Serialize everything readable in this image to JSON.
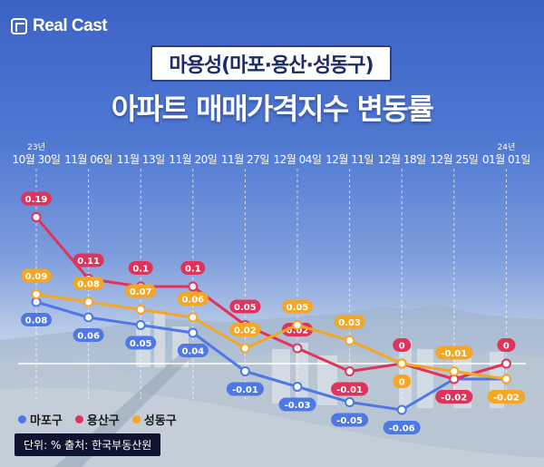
{
  "brand": {
    "name": "Real Cast"
  },
  "title": {
    "top": "마용성(마포·용산·성동구)",
    "main": "아파트 매매가격지수 변동률"
  },
  "note": "단위: % 출처: 한국부동산원",
  "colors": {
    "mapo": "#4d78e6",
    "yongsan": "#e0325a",
    "seongdong": "#f5a623"
  },
  "chart_data": {
    "type": "line",
    "x": [
      {
        "year": "23년",
        "date": "10월 30일"
      },
      {
        "year": "",
        "date": "11월 06일"
      },
      {
        "year": "",
        "date": "11월 13일"
      },
      {
        "year": "",
        "date": "11월 20일"
      },
      {
        "year": "",
        "date": "11월 27일"
      },
      {
        "year": "",
        "date": "12월 04일"
      },
      {
        "year": "",
        "date": "12월 11일"
      },
      {
        "year": "",
        "date": "12월 18일"
      },
      {
        "year": "",
        "date": "12월 25일"
      },
      {
        "year": "24년",
        "date": "01월 01일"
      }
    ],
    "series": [
      {
        "name": "마포구",
        "key": "mapo",
        "values": [
          0.08,
          0.06,
          0.05,
          0.04,
          -0.01,
          -0.03,
          -0.05,
          -0.06,
          -0.02,
          -0.02
        ],
        "labels": [
          "0.08",
          "0.06",
          "0.05",
          "0.04",
          "-0.01",
          "-0.03",
          "-0.05",
          "-0.06",
          "-0.02",
          "-0.02"
        ]
      },
      {
        "name": "용산구",
        "key": "yongsan",
        "values": [
          0.19,
          0.11,
          0.1,
          0.1,
          0.05,
          0.02,
          -0.01,
          0,
          -0.02,
          0
        ],
        "labels": [
          "0.19",
          "0.11",
          "0.1",
          "0.1",
          "0.05",
          "0.02",
          "-0.01",
          "0",
          "-0.02",
          "0"
        ]
      },
      {
        "name": "성동구",
        "key": "seongdong",
        "values": [
          0.09,
          0.08,
          0.07,
          0.06,
          0.02,
          0.05,
          0.03,
          0,
          -0.01,
          -0.02
        ],
        "labels": [
          "0.09",
          "0.08",
          "0.07",
          "0.06",
          "0.02",
          "0.05",
          "0.03",
          "0",
          "-0.01",
          "-0.02"
        ]
      }
    ],
    "grid": "vertical-dashed",
    "legend": "bottom-left"
  }
}
